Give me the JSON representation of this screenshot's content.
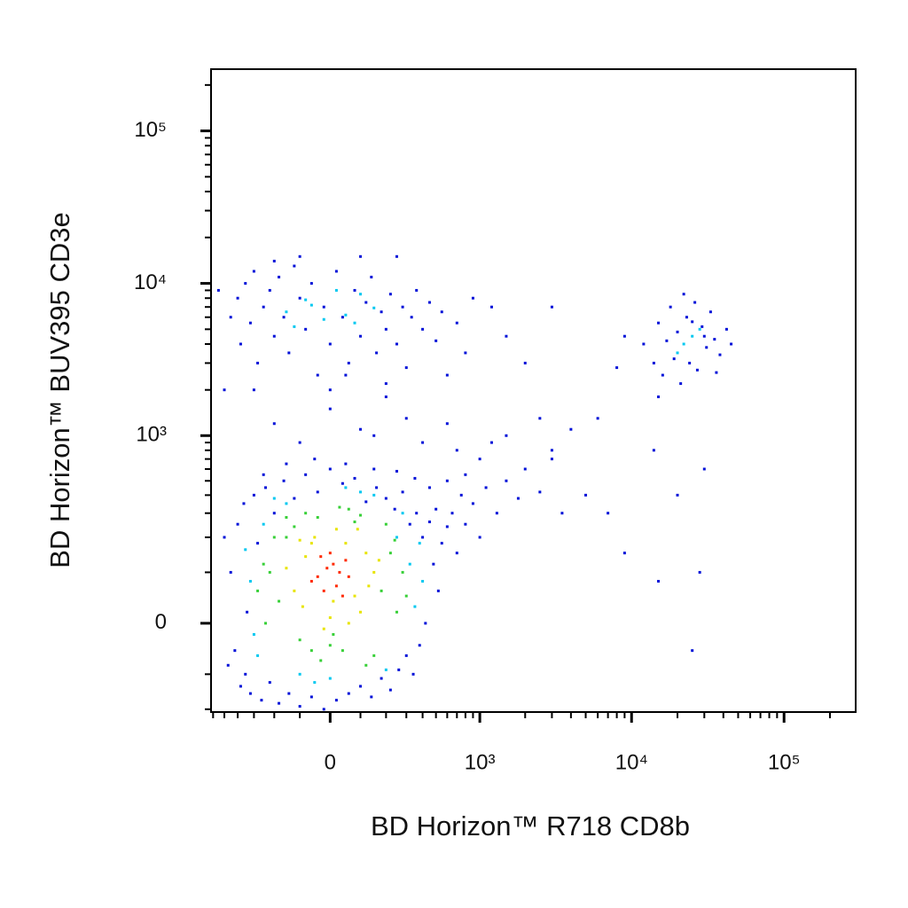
{
  "chart_data": {
    "type": "scatter",
    "xlabel": "BD Horizon™ R718 CD8b",
    "ylabel": "BD Horizon™ BUV395 CD3e",
    "xscale": "biexponential",
    "yscale": "biexponential",
    "xlim": [
      -620,
      295000
    ],
    "ylim": [
      -210,
      254000
    ],
    "xticks": [
      0,
      {
        "value": 1000,
        "label": "10³"
      },
      {
        "value": 10000,
        "label": "10⁴"
      },
      {
        "value": 100000,
        "label": "10⁵"
      }
    ],
    "yticks": [
      0,
      {
        "value": 1000,
        "label": "10³"
      },
      {
        "value": 10000,
        "label": "10⁴"
      },
      {
        "value": 100000,
        "label": "10⁵"
      }
    ],
    "xminorticks": [
      -600,
      -500,
      -400,
      -300,
      -200,
      -100,
      100,
      200,
      300,
      400,
      500,
      600,
      700,
      800,
      900,
      2000,
      3000,
      4000,
      5000,
      6000,
      7000,
      8000,
      9000,
      20000,
      30000,
      40000,
      50000,
      60000,
      70000,
      80000,
      90000,
      200000
    ],
    "yminorticks": [
      -200,
      -100,
      100,
      200,
      300,
      400,
      500,
      600,
      700,
      800,
      900,
      2000,
      3000,
      4000,
      5000,
      6000,
      7000,
      8000,
      9000,
      20000,
      30000,
      40000,
      50000,
      60000,
      70000,
      80000,
      90000,
      200000
    ],
    "series": [
      {
        "color": "#0010d8",
        "x": [
          -450,
          -420,
          -400,
          -380,
          -360,
          -340,
          -320,
          -300,
          -280,
          -260,
          -240,
          -220,
          -200,
          -180,
          -160,
          -140,
          -120,
          -100,
          -80,
          -60,
          -40,
          -20,
          0,
          20,
          40,
          60,
          80,
          100,
          120,
          140,
          160,
          180,
          200,
          220,
          240,
          260,
          280,
          300,
          320,
          340,
          360,
          380,
          400,
          420,
          450,
          480,
          500,
          520,
          550,
          600,
          650,
          700,
          750,
          800,
          900,
          1000,
          1100,
          1300,
          1500,
          1800,
          2000,
          2500,
          3000,
          3500,
          -500,
          -470,
          -350,
          -250,
          -150,
          -50,
          50,
          150,
          250,
          350,
          450,
          600,
          800,
          1000,
          1200,
          700,
          -200,
          -100,
          0,
          100,
          200,
          300,
          -300,
          50,
          400,
          150,
          600,
          1500,
          2500,
          4000,
          3000,
          -450,
          -400,
          -380,
          -350,
          -320,
          -300,
          -280,
          -250,
          -220,
          -200,
          -180,
          -160,
          -140,
          -120,
          -100,
          -80,
          -60,
          -40,
          -20,
          0,
          20,
          40,
          60,
          80,
          100,
          120,
          140,
          160,
          180,
          200,
          220,
          250,
          280,
          300,
          330,
          360,
          400,
          450,
          500,
          550,
          -500,
          -550,
          0,
          200,
          -100,
          100,
          250,
          -200,
          700,
          900,
          1200,
          2000,
          1500,
          3000,
          600,
          800,
          12000,
          14000,
          15000,
          16000,
          18000,
          19000,
          20000,
          21000,
          23000,
          24000,
          26000,
          27000,
          29000,
          31000,
          33000,
          35000,
          38000,
          42000,
          17000,
          25000,
          30000,
          22000,
          15000,
          36000,
          45000,
          9000,
          8000,
          7000,
          9000,
          15000,
          25000,
          28000,
          20000,
          30000,
          14000,
          5000,
          6000
        ],
        "values": [
          100,
          -50,
          250,
          -130,
          350,
          20,
          -150,
          400,
          180,
          -170,
          450,
          -120,
          300,
          -180,
          500,
          -150,
          380,
          -190,
          550,
          -160,
          420,
          -200,
          600,
          -170,
          480,
          -150,
          520,
          -130,
          360,
          -160,
          450,
          -110,
          380,
          -140,
          320,
          -90,
          420,
          -60,
          250,
          -100,
          300,
          -40,
          200,
          0,
          260,
          120,
          320,
          60,
          180,
          240,
          300,
          150,
          400,
          250,
          350,
          200,
          450,
          300,
          500,
          380,
          600,
          420,
          800,
          300,
          200,
          -80,
          -100,
          550,
          650,
          700,
          650,
          600,
          580,
          520,
          450,
          500,
          550,
          700,
          900,
          800,
          1200,
          900,
          1500,
          1100,
          1800,
          1300,
          2000,
          2500,
          900,
          1000,
          1200,
          1000,
          1300,
          1100,
          700,
          6000,
          8000,
          4000,
          10000,
          5500,
          12000,
          3000,
          7000,
          9000,
          4500,
          11000,
          6000,
          3500,
          13000,
          8000,
          5000,
          10000,
          2500,
          7000,
          4000,
          12000,
          6000,
          3000,
          9000,
          4500,
          7500,
          11000,
          3500,
          6500,
          5000,
          8500,
          4000,
          7000,
          2800,
          6000,
          9000,
          5000,
          7500,
          4200,
          6500,
          2000,
          9000,
          2000,
          2200,
          15000,
          15000,
          15000,
          14000,
          5500,
          8000,
          7000,
          3000,
          4500,
          7000,
          2500,
          3500,
          4000,
          3000,
          5500,
          2500,
          7000,
          3200,
          4800,
          2200,
          6000,
          3000,
          7500,
          2700,
          5200,
          3800,
          6500,
          4300,
          3400,
          5000,
          4200,
          5600,
          4500,
          8500,
          1800,
          2600,
          4000,
          4500,
          2800,
          300,
          150,
          80,
          -50,
          100,
          400,
          600,
          800,
          400,
          1300
        ]
      },
      {
        "color": "#00c8f0",
        "x": [
          -320,
          -300,
          320,
          350,
          -250,
          280,
          0,
          -100,
          100,
          -200,
          200,
          400,
          -350,
          50,
          -50,
          150,
          -150,
          250,
          -280,
          380,
          -150,
          -80,
          -20,
          50,
          100,
          -120,
          20,
          150,
          -60,
          80,
          22000,
          25000,
          20000,
          28000
        ],
        "values": [
          80,
          -20,
          120,
          30,
          250,
          300,
          -110,
          -100,
          420,
          380,
          -90,
          80,
          160,
          450,
          -120,
          400,
          350,
          200,
          -60,
          180,
          6500,
          7800,
          5800,
          6200,
          8500,
          5200,
          9000,
          6900,
          7200,
          5500,
          4000,
          4500,
          3500,
          5000
        ]
      },
      {
        "color": "#38d038",
        "x": [
          -220,
          -180,
          -150,
          180,
          220,
          250,
          -250,
          0,
          40,
          -40,
          100,
          -100,
          200,
          -200,
          150,
          -150,
          60,
          -60,
          280,
          -280,
          120,
          -120,
          30,
          -30,
          240,
          -240,
          80,
          -80,
          300,
          10
        ],
        "values": [
          100,
          40,
          200,
          60,
          150,
          20,
          120,
          -40,
          -50,
          280,
          290,
          -30,
          250,
          200,
          -60,
          280,
          320,
          -50,
          100,
          60,
          -80,
          240,
          330,
          -70,
          190,
          0,
          260,
          300,
          50,
          -20
        ]
      },
      {
        "color": "#e8e400",
        "x": [
          -120,
          -80,
          80,
          120,
          -100,
          100,
          0,
          -50,
          50,
          150,
          -150,
          20,
          -20,
          90,
          -90,
          130,
          60,
          -60,
          10,
          170
        ],
        "values": [
          60,
          140,
          50,
          150,
          190,
          20,
          10,
          200,
          180,
          100,
          110,
          230,
          -10,
          230,
          30,
          70,
          0,
          180,
          40,
          130
        ]
      },
      {
        "color": "#ff2a00",
        "x": [
          -40,
          -10,
          20,
          50,
          -60,
          0,
          30,
          -20,
          10,
          60,
          -30,
          40
        ],
        "values": [
          90,
          110,
          70,
          130,
          80,
          150,
          100,
          60,
          120,
          90,
          140,
          50
        ]
      }
    ]
  }
}
